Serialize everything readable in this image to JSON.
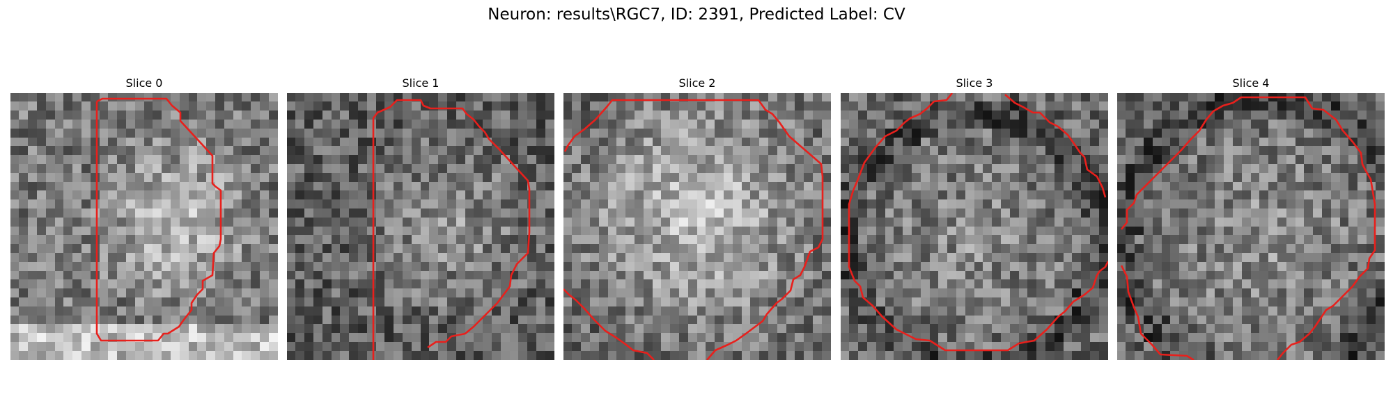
{
  "figure": {
    "title": "Neuron: results\\RGC7, ID: 2391, Predicted Label: CV"
  },
  "slices": [
    {
      "title": "Slice 0"
    },
    {
      "title": "Slice 1"
    },
    {
      "title": "Slice 2"
    },
    {
      "title": "Slice 3"
    },
    {
      "title": "Slice 4"
    }
  ],
  "colors": {
    "contour": "#e8201c"
  }
}
